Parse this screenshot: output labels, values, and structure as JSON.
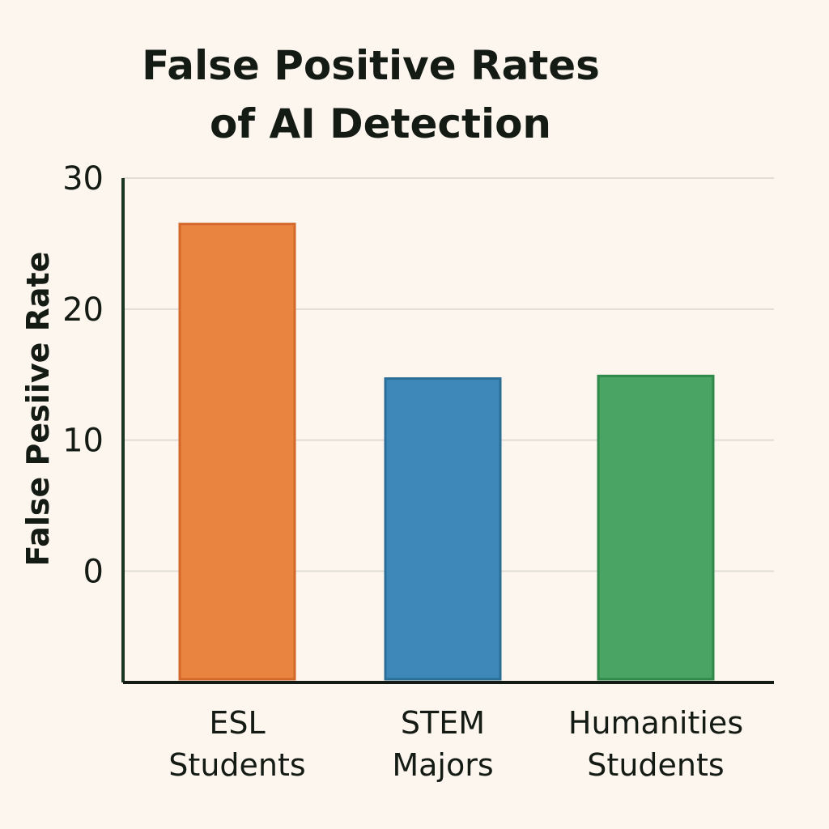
{
  "chart_data": {
    "type": "bar",
    "title": [
      "False Positive Rates",
      "of AI Detection"
    ],
    "ylabel": "False Pesiive Rate",
    "xlabel": "",
    "categories": [
      [
        "ESL",
        "Students"
      ],
      [
        "STEM",
        "Majors"
      ],
      [
        "Humanities",
        "Students"
      ]
    ],
    "values": [
      26.5,
      14.7,
      14.9
    ],
    "yticks": [
      0,
      10,
      20,
      30
    ],
    "ylim": [
      -8.5,
      30
    ],
    "grid": true,
    "bar_colors": [
      "#e8843f",
      "#3d88b8",
      "#4aa463"
    ],
    "bar_edge_colors": [
      "#d4672a",
      "#2b6e97",
      "#2f8a4b"
    ],
    "axis_color": "#1c3520",
    "grid_color": "#e0ddd6"
  }
}
